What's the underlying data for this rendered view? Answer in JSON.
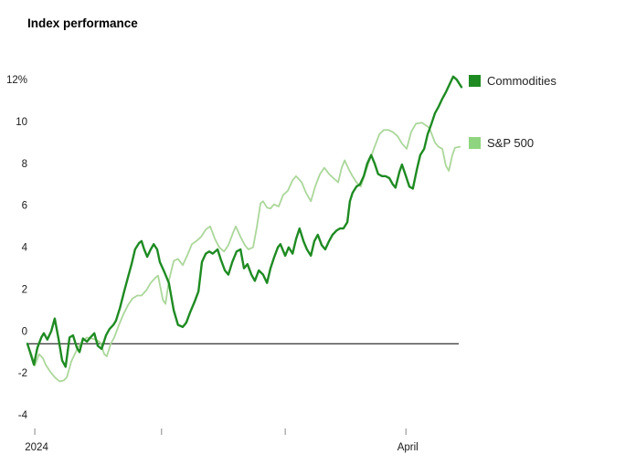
{
  "title": "Index performance",
  "legend": [
    {
      "id": "commodities",
      "label": "Commodities",
      "color": "#1e8b22"
    },
    {
      "id": "sp500",
      "label": "S&P 500",
      "color": "#8fd57f"
    }
  ],
  "chart_data": {
    "type": "line",
    "title": "Index performance",
    "xlabel": "",
    "ylabel": "%",
    "ylim": [
      -4,
      12
    ],
    "grid": false,
    "zero_baseline": true,
    "legend_position": "right",
    "y_ticks": [
      {
        "v": -4,
        "label": "-4"
      },
      {
        "v": -2,
        "label": "-2"
      },
      {
        "v": 0,
        "label": "0"
      },
      {
        "v": 2,
        "label": "2"
      },
      {
        "v": 4,
        "label": "4"
      },
      {
        "v": 6,
        "label": "6"
      },
      {
        "v": 8,
        "label": "8"
      },
      {
        "v": 10,
        "label": "10"
      },
      {
        "v": 12,
        "label": "12%"
      }
    ],
    "x_ticks": [
      {
        "t": 0.017,
        "label": "2024"
      },
      {
        "t": 0.309,
        "label": ""
      },
      {
        "t": 0.594,
        "label": ""
      },
      {
        "t": 0.872,
        "label": "April"
      }
    ],
    "series": [
      {
        "name": "Commodities",
        "color": "#1e8b22",
        "width": 2.4,
        "points": [
          [
            0.0,
            0.0
          ],
          [
            0.006,
            -0.4
          ],
          [
            0.015,
            -1.0
          ],
          [
            0.023,
            -0.2
          ],
          [
            0.032,
            0.3
          ],
          [
            0.038,
            0.5
          ],
          [
            0.046,
            0.2
          ],
          [
            0.055,
            0.6
          ],
          [
            0.063,
            1.2
          ],
          [
            0.072,
            0.2
          ],
          [
            0.08,
            -0.8
          ],
          [
            0.088,
            -1.1
          ],
          [
            0.097,
            0.3
          ],
          [
            0.105,
            0.4
          ],
          [
            0.114,
            -0.2
          ],
          [
            0.12,
            -0.4
          ],
          [
            0.128,
            0.25
          ],
          [
            0.137,
            0.1
          ],
          [
            0.145,
            0.3
          ],
          [
            0.154,
            0.5
          ],
          [
            0.162,
            -0.1
          ],
          [
            0.171,
            -0.25
          ],
          [
            0.181,
            0.4
          ],
          [
            0.189,
            0.7
          ],
          [
            0.198,
            0.9
          ],
          [
            0.204,
            1.1
          ],
          [
            0.213,
            1.7
          ],
          [
            0.223,
            2.5
          ],
          [
            0.232,
            3.2
          ],
          [
            0.24,
            3.8
          ],
          [
            0.248,
            4.5
          ],
          [
            0.257,
            4.8
          ],
          [
            0.263,
            4.9
          ],
          [
            0.269,
            4.5
          ],
          [
            0.276,
            4.15
          ],
          [
            0.284,
            4.5
          ],
          [
            0.291,
            4.75
          ],
          [
            0.299,
            4.5
          ],
          [
            0.305,
            3.9
          ],
          [
            0.316,
            3.4
          ],
          [
            0.326,
            2.9
          ],
          [
            0.337,
            1.6
          ],
          [
            0.347,
            0.9
          ],
          [
            0.358,
            0.8
          ],
          [
            0.366,
            1.0
          ],
          [
            0.375,
            1.5
          ],
          [
            0.385,
            2.0
          ],
          [
            0.394,
            2.5
          ],
          [
            0.402,
            3.9
          ],
          [
            0.411,
            4.3
          ],
          [
            0.419,
            4.4
          ],
          [
            0.427,
            4.3
          ],
          [
            0.438,
            4.5
          ],
          [
            0.446,
            4.0
          ],
          [
            0.455,
            3.5
          ],
          [
            0.463,
            3.3
          ],
          [
            0.472,
            3.9
          ],
          [
            0.482,
            4.4
          ],
          [
            0.491,
            4.5
          ],
          [
            0.499,
            3.6
          ],
          [
            0.507,
            3.8
          ],
          [
            0.516,
            3.3
          ],
          [
            0.524,
            3.0
          ],
          [
            0.533,
            3.5
          ],
          [
            0.543,
            3.3
          ],
          [
            0.552,
            2.9
          ],
          [
            0.56,
            3.6
          ],
          [
            0.568,
            4.1
          ],
          [
            0.577,
            4.6
          ],
          [
            0.583,
            4.75
          ],
          [
            0.594,
            4.2
          ],
          [
            0.602,
            4.6
          ],
          [
            0.611,
            4.3
          ],
          [
            0.619,
            5.0
          ],
          [
            0.627,
            5.5
          ],
          [
            0.636,
            4.9
          ],
          [
            0.644,
            4.5
          ],
          [
            0.653,
            4.2
          ],
          [
            0.661,
            4.9
          ],
          [
            0.669,
            5.2
          ],
          [
            0.678,
            4.7
          ],
          [
            0.686,
            4.5
          ],
          [
            0.695,
            4.9
          ],
          [
            0.703,
            5.2
          ],
          [
            0.712,
            5.4
          ],
          [
            0.72,
            5.5
          ],
          [
            0.728,
            5.5
          ],
          [
            0.737,
            5.8
          ],
          [
            0.743,
            6.8
          ],
          [
            0.749,
            7.2
          ],
          [
            0.758,
            7.5
          ],
          [
            0.766,
            7.6
          ],
          [
            0.775,
            8.0
          ],
          [
            0.783,
            8.6
          ],
          [
            0.792,
            9.0
          ],
          [
            0.8,
            8.6
          ],
          [
            0.808,
            8.1
          ],
          [
            0.817,
            8.0
          ],
          [
            0.825,
            8.0
          ],
          [
            0.834,
            7.9
          ],
          [
            0.842,
            7.6
          ],
          [
            0.848,
            7.45
          ],
          [
            0.857,
            8.2
          ],
          [
            0.863,
            8.55
          ],
          [
            0.872,
            8.0
          ],
          [
            0.88,
            7.5
          ],
          [
            0.888,
            7.4
          ],
          [
            0.897,
            8.3
          ],
          [
            0.905,
            9.0
          ],
          [
            0.914,
            9.3
          ],
          [
            0.922,
            10.0
          ],
          [
            0.931,
            10.5
          ],
          [
            0.939,
            11.0
          ],
          [
            0.947,
            11.3
          ],
          [
            0.956,
            11.7
          ],
          [
            0.964,
            12.0
          ],
          [
            0.973,
            12.4
          ],
          [
            0.981,
            12.75
          ],
          [
            0.989,
            12.6
          ],
          [
            1.0,
            12.25
          ]
        ]
      },
      {
        "name": "S&P 500",
        "color": "#abd79a",
        "width": 1.8,
        "points": [
          [
            0.0,
            0.0
          ],
          [
            0.011,
            -0.6
          ],
          [
            0.017,
            -1.05
          ],
          [
            0.027,
            -0.5
          ],
          [
            0.036,
            -0.7
          ],
          [
            0.042,
            -1.0
          ],
          [
            0.053,
            -1.35
          ],
          [
            0.063,
            -1.6
          ],
          [
            0.074,
            -1.8
          ],
          [
            0.084,
            -1.75
          ],
          [
            0.091,
            -1.6
          ],
          [
            0.101,
            -0.85
          ],
          [
            0.116,
            -0.2
          ],
          [
            0.126,
            0.1
          ],
          [
            0.137,
            0.3
          ],
          [
            0.147,
            0.25
          ],
          [
            0.158,
            0.2
          ],
          [
            0.168,
            0.05
          ],
          [
            0.177,
            -0.5
          ],
          [
            0.183,
            -0.6
          ],
          [
            0.192,
            0.0
          ],
          [
            0.2,
            0.3
          ],
          [
            0.211,
            0.9
          ],
          [
            0.221,
            1.4
          ],
          [
            0.232,
            1.85
          ],
          [
            0.242,
            2.15
          ],
          [
            0.253,
            2.3
          ],
          [
            0.263,
            2.3
          ],
          [
            0.274,
            2.55
          ],
          [
            0.284,
            2.9
          ],
          [
            0.295,
            3.15
          ],
          [
            0.301,
            3.25
          ],
          [
            0.312,
            2.1
          ],
          [
            0.318,
            1.9
          ],
          [
            0.326,
            3.0
          ],
          [
            0.337,
            3.95
          ],
          [
            0.347,
            4.05
          ],
          [
            0.358,
            3.75
          ],
          [
            0.368,
            4.2
          ],
          [
            0.379,
            4.75
          ],
          [
            0.389,
            4.9
          ],
          [
            0.4,
            5.1
          ],
          [
            0.411,
            5.45
          ],
          [
            0.421,
            5.6
          ],
          [
            0.432,
            5.0
          ],
          [
            0.442,
            4.6
          ],
          [
            0.453,
            4.4
          ],
          [
            0.463,
            4.7
          ],
          [
            0.474,
            5.3
          ],
          [
            0.48,
            5.6
          ],
          [
            0.491,
            5.1
          ],
          [
            0.501,
            4.7
          ],
          [
            0.509,
            4.5
          ],
          [
            0.52,
            4.6
          ],
          [
            0.528,
            5.5
          ],
          [
            0.537,
            6.7
          ],
          [
            0.543,
            6.8
          ],
          [
            0.552,
            6.5
          ],
          [
            0.56,
            6.45
          ],
          [
            0.568,
            6.65
          ],
          [
            0.579,
            6.55
          ],
          [
            0.589,
            7.1
          ],
          [
            0.6,
            7.3
          ],
          [
            0.611,
            7.8
          ],
          [
            0.619,
            8.0
          ],
          [
            0.632,
            7.7
          ],
          [
            0.642,
            7.2
          ],
          [
            0.653,
            6.8
          ],
          [
            0.663,
            7.5
          ],
          [
            0.674,
            8.1
          ],
          [
            0.684,
            8.4
          ],
          [
            0.695,
            8.1
          ],
          [
            0.705,
            7.9
          ],
          [
            0.716,
            7.7
          ],
          [
            0.724,
            8.4
          ],
          [
            0.731,
            8.75
          ],
          [
            0.741,
            8.3
          ],
          [
            0.749,
            8.0
          ],
          [
            0.758,
            7.7
          ],
          [
            0.768,
            7.5
          ],
          [
            0.779,
            8.2
          ],
          [
            0.789,
            8.8
          ],
          [
            0.8,
            9.4
          ],
          [
            0.811,
            10.0
          ],
          [
            0.821,
            10.2
          ],
          [
            0.832,
            10.2
          ],
          [
            0.842,
            10.1
          ],
          [
            0.853,
            9.9
          ],
          [
            0.863,
            9.55
          ],
          [
            0.874,
            9.3
          ],
          [
            0.884,
            10.1
          ],
          [
            0.895,
            10.5
          ],
          [
            0.909,
            10.55
          ],
          [
            0.926,
            10.3
          ],
          [
            0.939,
            9.6
          ],
          [
            0.947,
            9.4
          ],
          [
            0.956,
            9.3
          ],
          [
            0.964,
            8.5
          ],
          [
            0.971,
            8.25
          ],
          [
            0.979,
            9.0
          ],
          [
            0.985,
            9.35
          ],
          [
            0.996,
            9.4
          ]
        ]
      }
    ]
  }
}
